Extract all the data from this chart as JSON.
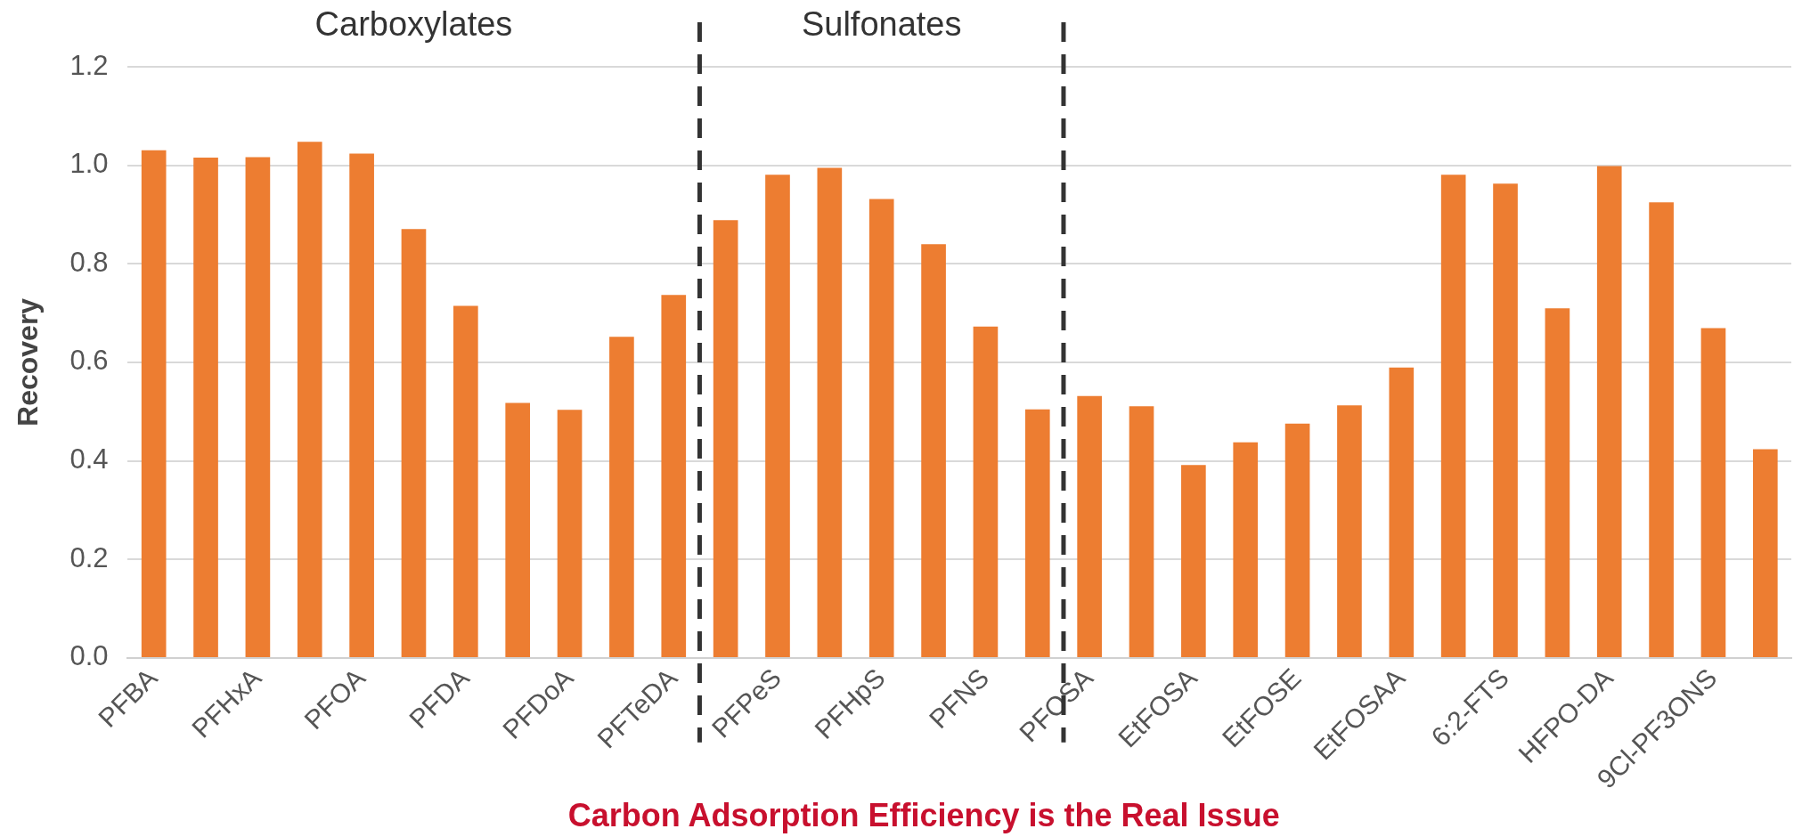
{
  "chart_data": {
    "type": "bar",
    "ylabel": "Recovery",
    "xlabel": "Carbon Adsorption Efficiency is the Real Issue",
    "categories": [
      "PFBA",
      null,
      "PFHxA",
      null,
      "PFOA",
      null,
      "PFDA",
      null,
      "PFDoA",
      null,
      "PFTeDA",
      null,
      "PFPeS",
      null,
      "PFHpS",
      null,
      "PFNS",
      null,
      "PFOSA",
      null,
      "EtFOSA",
      null,
      "EtFOSE",
      null,
      "EtFOSAA",
      null,
      "6:2-FTS",
      null,
      "HFPO-DA",
      null,
      "9Cl-PF3ONS",
      null
    ],
    "values": [
      1.03,
      1.015,
      1.016,
      1.047,
      1.023,
      0.87,
      0.714,
      0.517,
      0.503,
      0.651,
      0.736,
      0.888,
      0.98,
      0.994,
      0.931,
      0.839,
      0.672,
      0.504,
      0.531,
      0.51,
      0.391,
      0.437,
      0.475,
      0.512,
      0.589,
      0.98,
      0.962,
      0.709,
      0.998,
      0.924,
      0.669,
      0.423
    ],
    "color": "#ed7d31",
    "ylim": [
      0,
      1.2
    ],
    "yticks": [
      {
        "value": 0,
        "label": "0.0"
      },
      {
        "value": 0.2,
        "label": "0.2"
      },
      {
        "value": 0.4,
        "label": "0.4"
      },
      {
        "value": 0.6,
        "label": "0.6"
      },
      {
        "value": 0.8,
        "label": "0.8"
      },
      {
        "value": 1,
        "label": "1.0"
      },
      {
        "value": 1.2,
        "label": "1.2"
      }
    ],
    "grid": "y",
    "annotations": [
      "Carboxylates",
      "Sulfonates"
    ]
  }
}
